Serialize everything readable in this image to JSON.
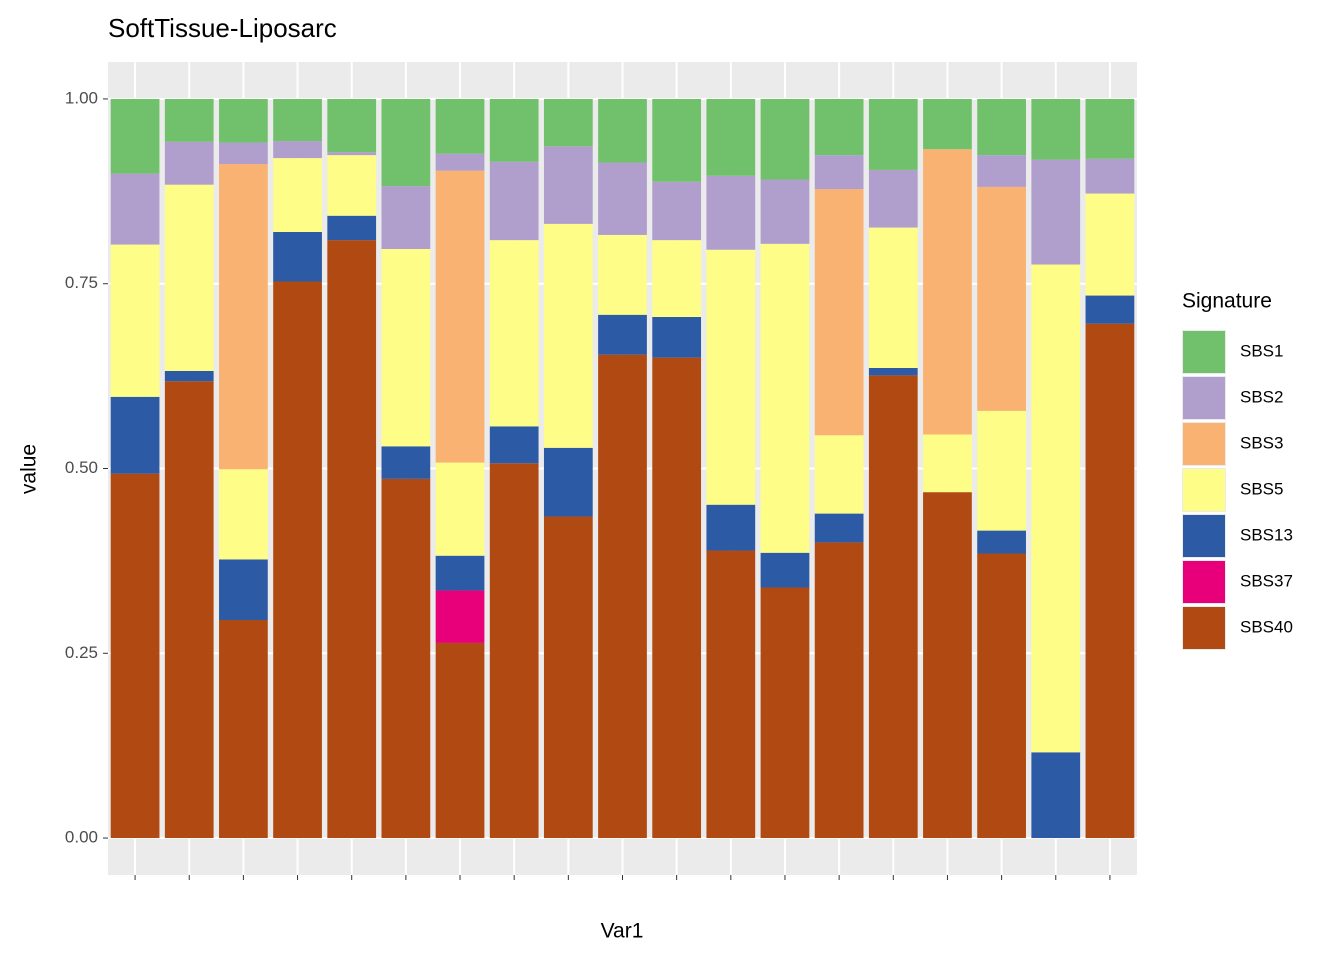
{
  "chart_data": {
    "type": "stacked_bar",
    "title": "SoftTissue-Liposarc",
    "x_label": "Var1",
    "y_label": "value",
    "legend_title": "Signature",
    "legend_position": "right",
    "categories": [
      null,
      null,
      null,
      null,
      null,
      null,
      null,
      null,
      null,
      null,
      null,
      null,
      null,
      null,
      null,
      null,
      null,
      null,
      null
    ],
    "series": [
      {
        "name": "SBS1",
        "color": "#71c16c",
        "values": [
          0.101,
          0.058,
          0.059,
          0.057,
          0.072,
          0.118,
          0.074,
          0.085,
          0.064,
          0.086,
          0.112,
          0.104,
          0.109,
          0.076,
          0.096,
          0.068,
          0.076,
          0.082,
          0.081
        ]
      },
      {
        "name": "SBS2",
        "color": "#b09ecd",
        "values": [
          0.096,
          0.058,
          0.029,
          0.023,
          0.004,
          0.085,
          0.023,
          0.106,
          0.105,
          0.098,
          0.079,
          0.1,
          0.087,
          0.046,
          0.078,
          0,
          0.043,
          0.142,
          0.047
        ]
      },
      {
        "name": "SBS3",
        "color": "#f9b272",
        "values": [
          0,
          0,
          0.413,
          0,
          0,
          0,
          0.395,
          0,
          0,
          0,
          0,
          0,
          0,
          0.333,
          0,
          0.386,
          0.303,
          0,
          0
        ]
      },
      {
        "name": "SBS5",
        "color": "#fdfd87",
        "values": [
          0.206,
          0.252,
          0.122,
          0.1,
          0.082,
          0.267,
          0.126,
          0.252,
          0.303,
          0.108,
          0.104,
          0.345,
          0.418,
          0.106,
          0.19,
          0.078,
          0.162,
          0.66,
          0.138
        ]
      },
      {
        "name": "SBS13",
        "color": "#2d5aa5",
        "values": [
          0.104,
          0.014,
          0.082,
          0.067,
          0.033,
          0.044,
          0.047,
          0.05,
          0.093,
          0.054,
          0.055,
          0.062,
          0.047,
          0.039,
          0.01,
          0,
          0.031,
          0.116,
          0.038
        ]
      },
      {
        "name": "SBS37",
        "color": "#e7007a",
        "values": [
          0,
          0,
          0,
          0,
          0,
          0,
          0.071,
          0,
          0,
          0,
          0,
          0,
          0,
          0,
          0,
          0,
          0,
          0,
          0
        ]
      },
      {
        "name": "SBS40",
        "color": "#b04a12",
        "values": [
          0.493,
          0.618,
          0.295,
          0.753,
          0.809,
          0.486,
          0.264,
          0.507,
          0.435,
          0.654,
          0.65,
          0.389,
          0.339,
          0.4,
          0.626,
          0.468,
          0.385,
          0,
          0.696
        ]
      }
    ],
    "ylim": [
      -0.05,
      1.05
    ],
    "yticks": [
      {
        "value": 0,
        "label": "0.00"
      },
      {
        "value": 0.25,
        "label": "0.25"
      },
      {
        "value": 0.5,
        "label": "0.50"
      },
      {
        "value": 0.75,
        "label": "0.75"
      },
      {
        "value": 1,
        "label": "1.00"
      }
    ],
    "grid": true
  }
}
